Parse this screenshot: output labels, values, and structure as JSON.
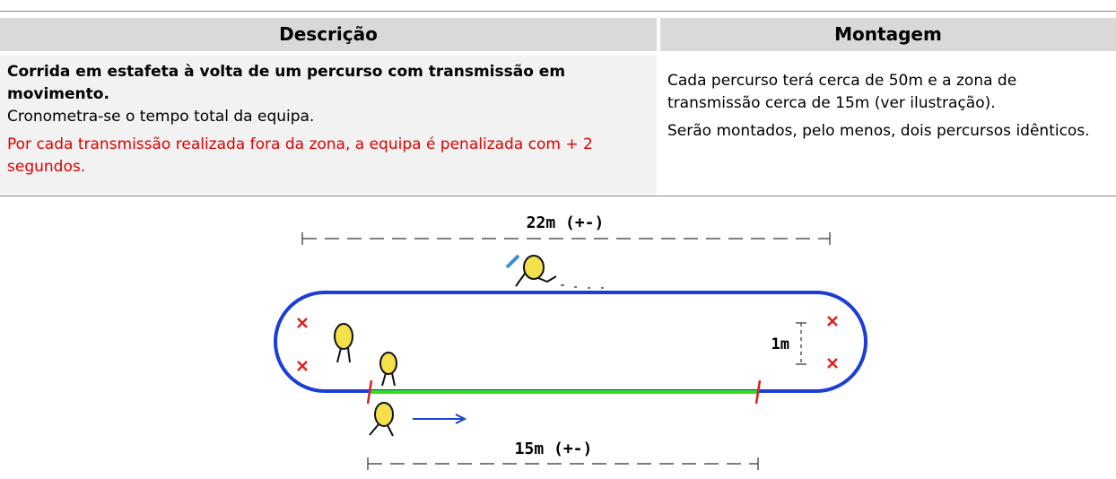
{
  "table": {
    "headers": [
      "Descrição",
      "Montagem"
    ],
    "description": {
      "title": "Corrida em estafeta à volta de um percurso com transmissão em movimento.",
      "text": "Cronometra-se o tempo total da equipa.",
      "penalty": "Por cada transmissão realizada fora da zona, a equipa é penalizada com + 2 segundos."
    },
    "setup": {
      "paragraphs": [
        "Cada percurso terá cerca de 50m e a zona de transmissão cerca de 15m (ver ilustração).",
        "Serão montados, pelo menos, dois percursos idênticos."
      ]
    }
  },
  "illustration": {
    "top_length": "22m (+-)",
    "width": "1m",
    "zone_length": "15m (+-)"
  }
}
